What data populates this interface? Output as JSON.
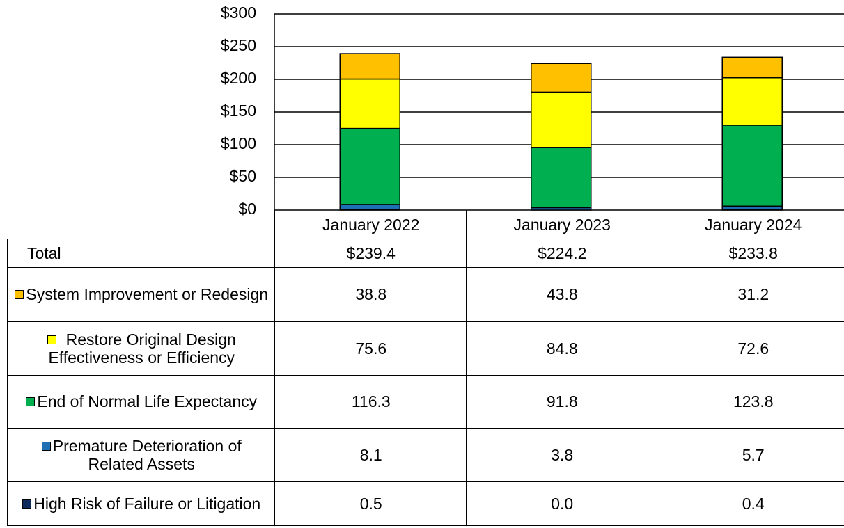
{
  "chart_data": {
    "type": "bar",
    "stacked": true,
    "categories": [
      "January 2022",
      "January 2023",
      "January 2024"
    ],
    "ylim": [
      0,
      300
    ],
    "yticks": [
      {
        "value": 0,
        "label": "$0"
      },
      {
        "value": 50,
        "label": "$50"
      },
      {
        "value": 100,
        "label": "$100"
      },
      {
        "value": 150,
        "label": "$150"
      },
      {
        "value": 200,
        "label": "$200"
      },
      {
        "value": 250,
        "label": "$250"
      },
      {
        "value": 300,
        "label": "$300"
      }
    ],
    "grid": true,
    "total": {
      "label": "Total",
      "values": [
        "$239.4",
        "$224.2",
        "$233.8"
      ]
    },
    "series": [
      {
        "name": "System Improvement or Redesign",
        "color": "#ffc000",
        "values": [
          38.8,
          43.8,
          31.2
        ]
      },
      {
        "name": "Restore Original Design Effectiveness or Efficiency",
        "color": "#ffff00",
        "values": [
          75.6,
          84.8,
          72.6
        ]
      },
      {
        "name": "End of Normal Life Expectancy",
        "color": "#00b050",
        "values": [
          116.3,
          91.8,
          123.8
        ]
      },
      {
        "name": "Premature Deterioration of Related Assets",
        "color": "#1f6fb5",
        "values": [
          8.1,
          3.8,
          5.7
        ]
      },
      {
        "name": "High Risk of Failure or Litigation",
        "color": "#0c2a5b",
        "values": [
          0.5,
          0,
          0.4
        ],
        "value_labels": [
          "0.5",
          "0.0",
          "0.4"
        ]
      }
    ]
  }
}
